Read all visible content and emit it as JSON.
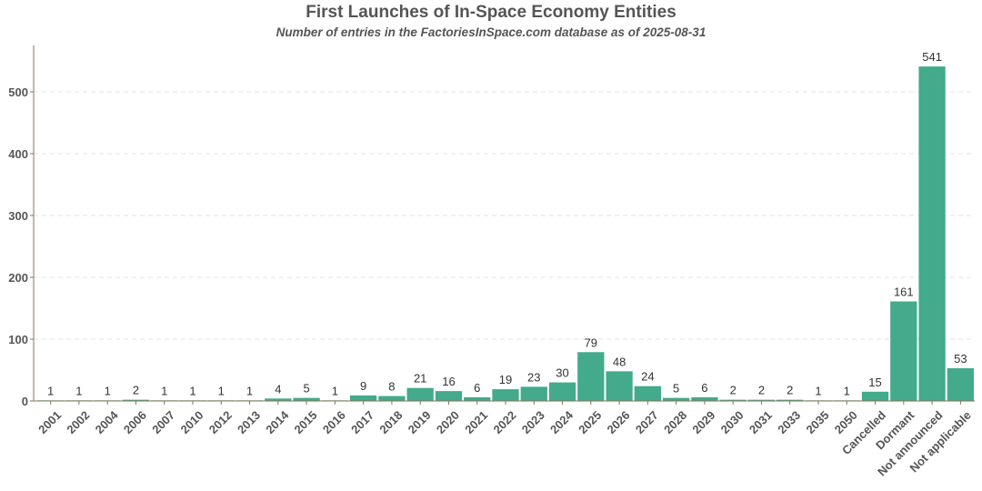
{
  "chart_data": {
    "type": "bar",
    "title": "First Launches of In-Space Economy Entities",
    "subtitle": "Number of entries in the FactoriesInSpace.com database as of 2025-08-31",
    "xlabel": "",
    "ylabel": "",
    "categories": [
      "2001",
      "2002",
      "2004",
      "2006",
      "2007",
      "2010",
      "2012",
      "2013",
      "2014",
      "2015",
      "2016",
      "2017",
      "2018",
      "2019",
      "2020",
      "2021",
      "2022",
      "2023",
      "2024",
      "2025",
      "2026",
      "2027",
      "2028",
      "2029",
      "2030",
      "2031",
      "2033",
      "2035",
      "2050",
      "Cancelled",
      "Dormant",
      "Not announced",
      "Not applicable"
    ],
    "values": [
      1,
      1,
      1,
      2,
      1,
      1,
      1,
      1,
      4,
      5,
      1,
      9,
      8,
      21,
      16,
      6,
      19,
      23,
      30,
      79,
      48,
      24,
      5,
      6,
      2,
      2,
      2,
      1,
      1,
      15,
      161,
      541,
      53
    ],
    "ylim": [
      0,
      575
    ],
    "yticks": [
      0,
      100,
      200,
      300,
      400,
      500
    ],
    "grid": "horizontal dashed",
    "bar_color": "#43aa8b",
    "data_labels": true
  }
}
